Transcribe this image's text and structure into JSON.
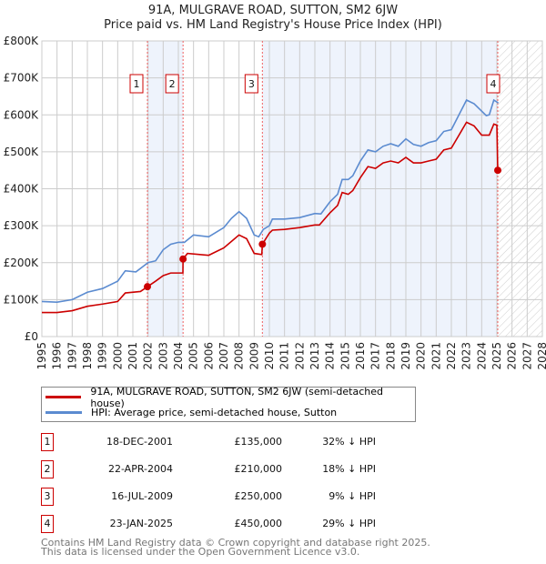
{
  "chart_data": {
    "type": "line",
    "title": "91A, MULGRAVE ROAD, SUTTON, SM2 6JW",
    "subtitle": "Price paid vs. HM Land Registry's House Price Index (HPI)",
    "xlim": [
      1995,
      2028
    ],
    "ylim": [
      0,
      800000
    ],
    "x_ticks": [
      "1995",
      "1996",
      "1997",
      "1998",
      "1999",
      "2000",
      "2001",
      "2002",
      "2003",
      "2004",
      "2005",
      "2006",
      "2007",
      "2008",
      "2009",
      "2010",
      "2011",
      "2012",
      "2013",
      "2014",
      "2015",
      "2016",
      "2017",
      "2018",
      "2019",
      "2020",
      "2021",
      "2022",
      "2023",
      "2024",
      "2025",
      "2026",
      "2027",
      "2028"
    ],
    "y_ticks": [
      {
        "v": 0,
        "label": "£0"
      },
      {
        "v": 100000,
        "label": "£100K"
      },
      {
        "v": 200000,
        "label": "£200K"
      },
      {
        "v": 300000,
        "label": "£300K"
      },
      {
        "v": 400000,
        "label": "£400K"
      },
      {
        "v": 500000,
        "label": "£500K"
      },
      {
        "v": 600000,
        "label": "£600K"
      },
      {
        "v": 700000,
        "label": "£700K"
      },
      {
        "v": 800000,
        "label": "£800K"
      }
    ],
    "grid": true,
    "series": [
      {
        "name": "91A, MULGRAVE ROAD, SUTTON, SM2 6JW (semi-detached house)",
        "color": "#cc0000",
        "x": [
          1995,
          1996,
          1997,
          1998,
          1999,
          2000,
          2000.5,
          2001.5,
          2001.96,
          2002.5,
          2003,
          2003.5,
          2004.3,
          2004.31,
          2004.6,
          2006,
          2007,
          2008,
          2008.5,
          2009,
          2009.5,
          2009.54,
          2010,
          2010.2,
          2011,
          2012,
          2013,
          2013.3,
          2014,
          2014.5,
          2014.8,
          2015.2,
          2015.5,
          2016,
          2016.5,
          2017,
          2017.5,
          2018,
          2018.5,
          2019,
          2019.5,
          2020,
          2020.5,
          2021,
          2021.5,
          2022,
          2022.5,
          2023,
          2023.5,
          2024,
          2024.5,
          2024.8,
          2025.0,
          2025.06
        ],
        "y": [
          65000,
          65000,
          70000,
          82000,
          88000,
          95000,
          118000,
          122000,
          135000,
          150000,
          165000,
          172000,
          172000,
          210000,
          225000,
          220000,
          240000,
          275000,
          265000,
          225000,
          222000,
          250000,
          280000,
          288000,
          290000,
          295000,
          302000,
          302000,
          335000,
          355000,
          390000,
          385000,
          395000,
          430000,
          460000,
          455000,
          470000,
          475000,
          470000,
          485000,
          470000,
          470000,
          475000,
          480000,
          505000,
          510000,
          545000,
          580000,
          570000,
          545000,
          545000,
          575000,
          572000,
          450000
        ]
      },
      {
        "name": "HPI: Average price, semi-detached house, Sutton",
        "color": "#5b8bd0",
        "x": [
          1995,
          1996,
          1997,
          1998,
          1999,
          2000,
          2000.5,
          2001.2,
          2002,
          2002.5,
          2003,
          2003.5,
          2004,
          2004.4,
          2005,
          2006,
          2007,
          2007.5,
          2008,
          2008.5,
          2009,
          2009.3,
          2009.6,
          2010,
          2010.2,
          2011,
          2012,
          2013,
          2013.4,
          2014,
          2014.5,
          2014.8,
          2015.2,
          2015.5,
          2016,
          2016.5,
          2017,
          2017.5,
          2018,
          2018.5,
          2019,
          2019.5,
          2020,
          2020.5,
          2021,
          2021.5,
          2022,
          2022.5,
          2023,
          2023.5,
          2024,
          2024.3,
          2024.5,
          2024.8,
          2025.1
        ],
        "y": [
          95000,
          93000,
          100000,
          120000,
          130000,
          150000,
          178000,
          175000,
          200000,
          205000,
          235000,
          250000,
          255000,
          255000,
          275000,
          270000,
          295000,
          320000,
          338000,
          320000,
          275000,
          270000,
          290000,
          300000,
          318000,
          318000,
          322000,
          333000,
          332000,
          365000,
          385000,
          425000,
          425000,
          435000,
          475000,
          505000,
          500000,
          515000,
          522000,
          515000,
          535000,
          520000,
          515000,
          525000,
          530000,
          555000,
          560000,
          600000,
          640000,
          630000,
          610000,
          598000,
          600000,
          640000,
          632000
        ]
      }
    ],
    "sales": [
      {
        "id": "1",
        "x": 2001.96,
        "date": "18-DEC-2001",
        "price": 135000,
        "price_label": "£135,000",
        "hpi": "32% ↓ HPI"
      },
      {
        "id": "2",
        "x": 2004.31,
        "date": "22-APR-2004",
        "price": 210000,
        "price_label": "£210,000",
        "hpi": "18% ↓ HPI"
      },
      {
        "id": "3",
        "x": 2009.54,
        "date": "16-JUL-2009",
        "price": 250000,
        "price_label": "£250,000",
        "hpi": "9% ↓ HPI"
      },
      {
        "id": "4",
        "x": 2025.06,
        "date": "23-JAN-2025",
        "price": 450000,
        "price_label": "£450,000",
        "hpi": "29% ↓ HPI"
      }
    ],
    "shaded_spans": [
      [
        2001.96,
        2004.31
      ],
      [
        2009.54,
        2025.06
      ]
    ],
    "hatched_span": [
      2025.1,
      2028
    ]
  },
  "footer": {
    "line1": "Contains HM Land Registry data © Crown copyright and database right 2025.",
    "line2": "This data is licensed under the Open Government Licence v3.0."
  }
}
